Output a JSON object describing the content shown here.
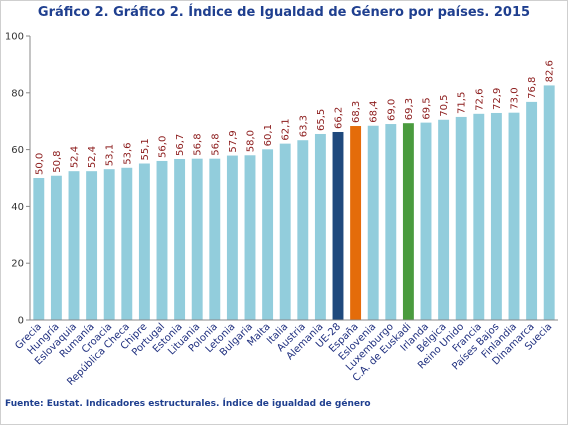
{
  "title": "Gráfico 2. Gráfico 2. Índice de Igualdad de Género por países. 2015",
  "source": "Fuente: Eustat. Indicadores estructurales. Índice de igualdad de género",
  "colors": {
    "default_bar": "#92cddc",
    "ue28_bar": "#1f497d",
    "spain_bar": "#e46c0a",
    "euskadi_bar": "#4a9b3e",
    "label": "#8b1a1a",
    "category_text": "#1f2f7f"
  },
  "chart_data": {
    "type": "bar",
    "title": "Gráfico 2. Gráfico 2. Índice de Igualdad de Género por países. 2015",
    "xlabel": "",
    "ylabel": "",
    "ylim": [
      0,
      100
    ],
    "yticks": [
      0,
      20,
      40,
      60,
      80,
      100
    ],
    "grid": false,
    "legend": "none",
    "categories": [
      "Grecia",
      "Hungría",
      "Eslovaquia",
      "Rumanía",
      "Croacia",
      "República Checa",
      "Chipre",
      "Portugal",
      "Estonia",
      "Lituania",
      "Polonia",
      "Letonia",
      "Bulgaria",
      "Malta",
      "Italia",
      "Austria",
      "Alemania",
      "UE-28",
      "España",
      "Eslovenia",
      "Luxemburgo",
      "C.A. de Euskadi",
      "Irlanda",
      "Bélgica",
      "Reino Unido",
      "Francia",
      "Países Bajos",
      "Finlandia",
      "Dinamarca",
      "Suecia"
    ],
    "values": [
      50.0,
      50.8,
      52.4,
      52.4,
      53.1,
      53.6,
      55.1,
      56.0,
      56.7,
      56.8,
      56.8,
      57.9,
      58.0,
      60.1,
      62.1,
      63.3,
      65.5,
      66.2,
      68.3,
      68.4,
      69.0,
      69.3,
      69.5,
      70.5,
      71.5,
      72.6,
      72.9,
      73.0,
      76.8,
      82.6
    ],
    "value_labels": [
      "50,0",
      "50,8",
      "52,4",
      "52,4",
      "53,1",
      "53,6",
      "55,1",
      "56,0",
      "56,7",
      "56,8",
      "56,8",
      "57,9",
      "58,0",
      "60,1",
      "62,1",
      "63,3",
      "65,5",
      "66,2",
      "68,3",
      "68,4",
      "69,0",
      "69,3",
      "69,5",
      "70,5",
      "71,5",
      "72,6",
      "72,9",
      "73,0",
      "76,8",
      "82,6"
    ],
    "highlight": {
      "UE-28": "ue28_bar",
      "España": "spain_bar",
      "C.A. de Euskadi": "euskadi_bar"
    }
  }
}
